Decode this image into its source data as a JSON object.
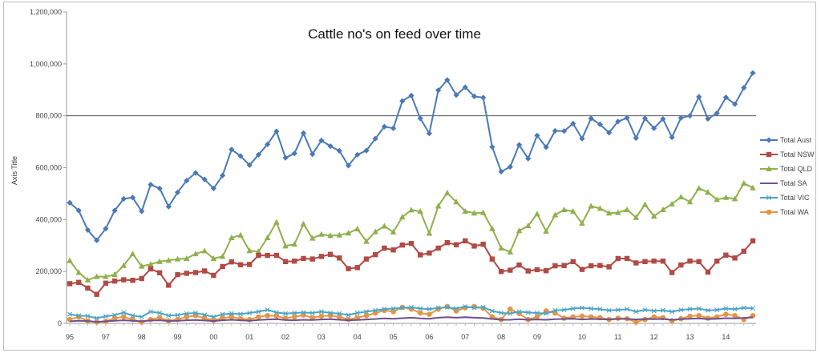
{
  "chart_data": {
    "type": "line",
    "title": "Cattle no's on feed over time",
    "xlabel": "",
    "ylabel": "Axis Title",
    "ylim": [
      0,
      1200000
    ],
    "yticks": [
      0,
      200000,
      400000,
      600000,
      800000,
      1000000,
      1200000
    ],
    "ytick_labels": [
      "0",
      "200,000",
      "400,000",
      "600,000",
      "800,000",
      "1,000,000",
      "1,200,000"
    ],
    "reference_line": 800000,
    "grid": false,
    "legend_position": "right",
    "x_tick_labels": [
      "95",
      "97",
      "98",
      "99",
      "00",
      "01",
      "02",
      "03",
      "04",
      "05",
      "06",
      "07",
      "08",
      "09",
      "10",
      "11",
      "12",
      "13",
      "14"
    ],
    "x_tick_index": [
      0,
      4,
      8,
      12,
      16,
      20,
      24,
      28,
      32,
      36,
      40,
      44,
      48,
      52,
      57,
      61,
      65,
      69,
      73
    ],
    "series": [
      {
        "name": "Total Aust",
        "color": "#4a7ab5",
        "marker": "diamond",
        "values": [
          465000,
          435000,
          360000,
          320000,
          365000,
          435000,
          480000,
          485000,
          432000,
          535000,
          520000,
          450000,
          505000,
          550000,
          580000,
          555000,
          520000,
          570000,
          670000,
          645000,
          610000,
          650000,
          690000,
          740000,
          638000,
          655000,
          733000,
          652000,
          705000,
          683000,
          665000,
          608000,
          650000,
          666000,
          712000,
          758000,
          752000,
          857000,
          878000,
          790000,
          732000,
          898000,
          938000,
          880000,
          910000,
          875000,
          870000,
          680000,
          585000,
          603000,
          688000,
          635000,
          724000,
          679000,
          742000,
          741000,
          770000,
          712000,
          790000,
          767000,
          735000,
          778000,
          792000,
          714000,
          790000,
          752000,
          788000,
          717000,
          792000,
          800000,
          873000,
          788000,
          810000,
          871000,
          845000,
          908000,
          965000
        ]
      },
      {
        "name": "Total NSW",
        "color": "#b04a45",
        "marker": "square",
        "values": [
          153000,
          158000,
          136000,
          112000,
          155000,
          163000,
          168000,
          166000,
          173000,
          210000,
          195000,
          147000,
          188000,
          193000,
          196000,
          202000,
          185000,
          219000,
          237000,
          226000,
          227000,
          262000,
          262000,
          262000,
          238000,
          240000,
          250000,
          248000,
          258000,
          266000,
          252000,
          211000,
          215000,
          248000,
          265000,
          290000,
          283000,
          302000,
          308000,
          264000,
          271000,
          290000,
          311000,
          303000,
          318000,
          298000,
          305000,
          248000,
          200000,
          205000,
          225000,
          202000,
          207000,
          203000,
          222000,
          223000,
          238000,
          208000,
          222000,
          223000,
          218000,
          250000,
          250000,
          233000,
          238000,
          240000,
          240000,
          196000,
          225000,
          240000,
          238000,
          198000,
          240000,
          263000,
          252000,
          278000,
          318000
        ]
      },
      {
        "name": "Total QLD",
        "color": "#8fb04d",
        "marker": "triangle",
        "values": [
          242000,
          196000,
          167000,
          180000,
          180000,
          188000,
          223000,
          268000,
          220000,
          228000,
          238000,
          243000,
          248000,
          250000,
          268000,
          279000,
          250000,
          258000,
          330000,
          340000,
          280000,
          277000,
          330000,
          390000,
          298000,
          305000,
          383000,
          328000,
          343000,
          338000,
          340000,
          348000,
          364000,
          316000,
          353000,
          375000,
          352000,
          410000,
          437000,
          432000,
          347000,
          452000,
          503000,
          468000,
          432000,
          425000,
          427000,
          365000,
          290000,
          275000,
          357000,
          376000,
          422000,
          355000,
          418000,
          438000,
          432000,
          386000,
          452000,
          443000,
          425000,
          427000,
          438000,
          408000,
          458000,
          413000,
          438000,
          460000,
          487000,
          468000,
          521000,
          505000,
          477000,
          485000,
          480000,
          540000,
          522000
        ]
      },
      {
        "name": "Total SA",
        "color": "#6e4f8f",
        "marker": "none",
        "values": [
          8000,
          10000,
          9000,
          6000,
          8000,
          10000,
          12000,
          10000,
          8000,
          11000,
          12000,
          9000,
          10000,
          12000,
          13000,
          11000,
          9000,
          12000,
          14000,
          12000,
          10000,
          13000,
          15000,
          16000,
          13000,
          12000,
          14000,
          13000,
          15000,
          16000,
          14000,
          12000,
          13000,
          15000,
          17000,
          19000,
          18000,
          20000,
          22000,
          19000,
          18000,
          22000,
          24000,
          22000,
          24000,
          22000,
          21000,
          17000,
          14000,
          14000,
          16000,
          14000,
          15000,
          14000,
          16000,
          17000,
          18000,
          15000,
          17000,
          16000,
          15000,
          17000,
          18000,
          15000,
          17000,
          16000,
          17000,
          14000,
          16000,
          18000,
          19000,
          16000,
          18000,
          20000,
          19000,
          21000,
          23000
        ]
      },
      {
        "name": "Total VIC",
        "color": "#4aa5c5",
        "marker": "cross",
        "values": [
          35000,
          30000,
          28000,
          20000,
          27000,
          32000,
          42000,
          30000,
          25000,
          45000,
          40000,
          30000,
          32000,
          38000,
          40000,
          33000,
          25000,
          35000,
          38000,
          36000,
          40000,
          45000,
          52000,
          42000,
          38000,
          40000,
          42000,
          40000,
          45000,
          40000,
          38000,
          32000,
          40000,
          45000,
          50000,
          55000,
          57000,
          60000,
          62000,
          57000,
          55000,
          60000,
          62000,
          57000,
          65000,
          60000,
          62000,
          48000,
          40000,
          38000,
          45000,
          42000,
          40000,
          38000,
          50000,
          52000,
          57000,
          60000,
          57000,
          55000,
          50000,
          52000,
          55000,
          45000,
          52000,
          48000,
          50000,
          45000,
          52000,
          55000,
          57000,
          50000,
          52000,
          57000,
          55000,
          60000,
          58000
        ]
      },
      {
        "name": "Total WA",
        "color": "#e49545",
        "marker": "circle",
        "values": [
          15000,
          25000,
          10000,
          5000,
          8000,
          20000,
          25000,
          15000,
          5000,
          15000,
          22000,
          10000,
          15000,
          25000,
          30000,
          20000,
          12000,
          20000,
          25000,
          18000,
          15000,
          25000,
          30000,
          28000,
          20000,
          25000,
          32000,
          22000,
          28000,
          30000,
          25000,
          15000,
          22000,
          30000,
          40000,
          50000,
          45000,
          62000,
          55000,
          40000,
          35000,
          55000,
          65000,
          48000,
          60000,
          65000,
          58000,
          25000,
          15000,
          55000,
          38000,
          15000,
          25000,
          48000,
          40000,
          20000,
          25000,
          28000,
          25000,
          22000,
          15000,
          20000,
          18000,
          5000,
          15000,
          25000,
          22000,
          10000,
          18000,
          28000,
          30000,
          20000,
          25000,
          35000,
          30000,
          15000,
          30000
        ]
      }
    ]
  }
}
